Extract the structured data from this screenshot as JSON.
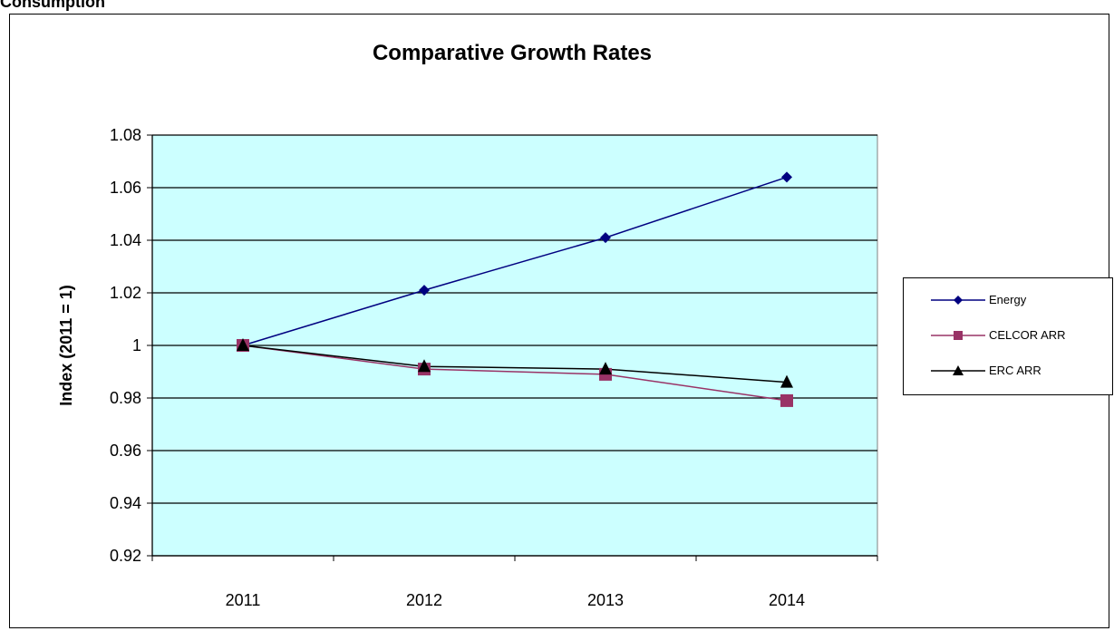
{
  "page": {
    "heading": "Consumption"
  },
  "chart_data": {
    "type": "line",
    "title": "Comparative Growth Rates",
    "xlabel": "",
    "ylabel": "Index (2011 = 1)",
    "categories": [
      "2011",
      "2012",
      "2013",
      "2014"
    ],
    "ylim": [
      0.92,
      1.08
    ],
    "yticks": [
      0.92,
      0.94,
      0.96,
      0.98,
      1,
      1.02,
      1.04,
      1.06,
      1.08
    ],
    "ytick_labels": [
      "0.92",
      "0.94",
      "0.96",
      "0.98",
      "1",
      "1.02",
      "1.04",
      "1.06",
      "1.08"
    ],
    "grid": true,
    "legend_position": "right",
    "plot_background": "#ccffff",
    "series": [
      {
        "name": "Energy",
        "values": [
          1.0,
          1.021,
          1.041,
          1.064
        ],
        "color": "#000080",
        "marker": "diamond"
      },
      {
        "name": "CELCOR ARR",
        "values": [
          1.0,
          0.991,
          0.989,
          0.979
        ],
        "color": "#993366",
        "marker": "square"
      },
      {
        "name": "ERC ARR",
        "values": [
          1.0,
          0.992,
          0.991,
          0.986
        ],
        "color": "#000000",
        "marker": "triangle"
      }
    ]
  }
}
